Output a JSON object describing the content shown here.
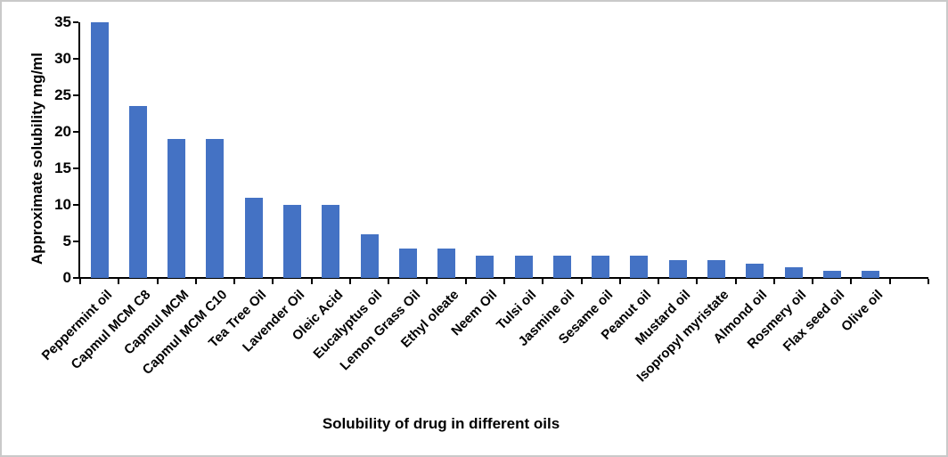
{
  "chart_data": {
    "type": "bar",
    "title": "",
    "xlabel": "Solubility of drug in different oils",
    "ylabel": "Approximate solubility mg/ml",
    "categories": [
      "Peppermint oil",
      "Capmul MCM C8",
      "Capmul MCM",
      "Capmul MCM C10",
      "Tea Tree Oil",
      "Lavender Oil",
      "Oleic Acid",
      "Eucalyptus oil",
      "Lemon Grass Oil",
      "Ethyl oleate",
      "Neem Oil",
      "Tulsi oil",
      "Jasmine oil",
      "Sesame oil",
      "Peanut oil",
      "Mustard oil",
      "Isopropyl myristate",
      "Almond oil",
      "Rosmery oil",
      "Flax seed oil",
      "Olive oil"
    ],
    "values": [
      35,
      23.5,
      19,
      19,
      11,
      10,
      10,
      6,
      4,
      4,
      3,
      3,
      3,
      3,
      3,
      2.5,
      2.5,
      2,
      1.5,
      1,
      1
    ],
    "ylim": [
      0,
      35
    ],
    "yticks": [
      0,
      5,
      10,
      15,
      20,
      25,
      30,
      35
    ],
    "grid": false,
    "legend_position": "none",
    "bar_color": "#4472C4",
    "axis_color": "#000000",
    "frame_border_color": "#c9c9c9"
  }
}
